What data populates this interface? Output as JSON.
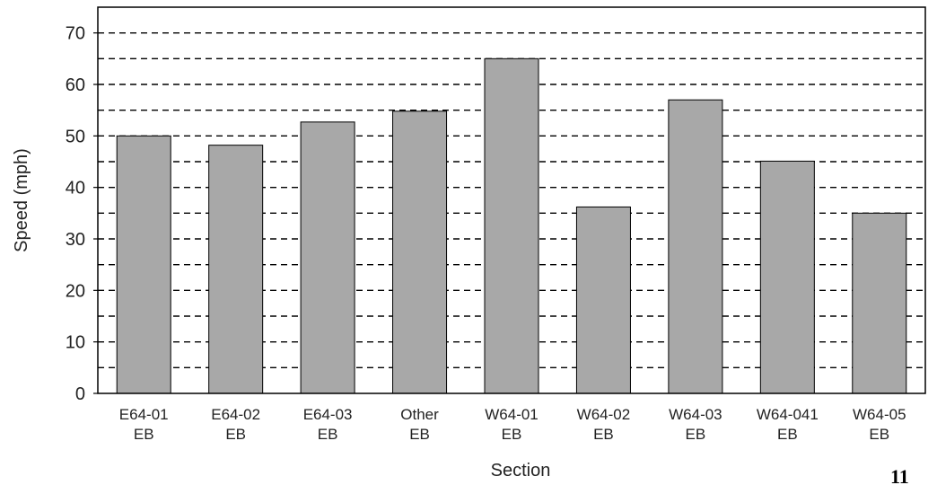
{
  "chart_data": {
    "type": "bar",
    "categories": [
      [
        "E64-01",
        "EB"
      ],
      [
        "E64-02",
        "EB"
      ],
      [
        "E64-03",
        "EB"
      ],
      [
        "Other",
        "EB"
      ],
      [
        "W64-01",
        "EB"
      ],
      [
        "W64-02",
        "EB"
      ],
      [
        "W64-03",
        "EB"
      ],
      [
        "W64-041",
        "EB"
      ],
      [
        "W64-05",
        "EB"
      ]
    ],
    "values": [
      50,
      48.2,
      52.7,
      54.8,
      65,
      36.2,
      57,
      45.1,
      35
    ],
    "xlabel": "Section",
    "ylabel": "Speed (mph)",
    "ylim": [
      0,
      75
    ],
    "yticks": [
      0,
      10,
      20,
      30,
      40,
      50,
      60,
      70
    ],
    "grid": "dashed horizontal every 5",
    "legend": "none",
    "bar_color": "#a8a8a8",
    "corner_mark": "11"
  }
}
